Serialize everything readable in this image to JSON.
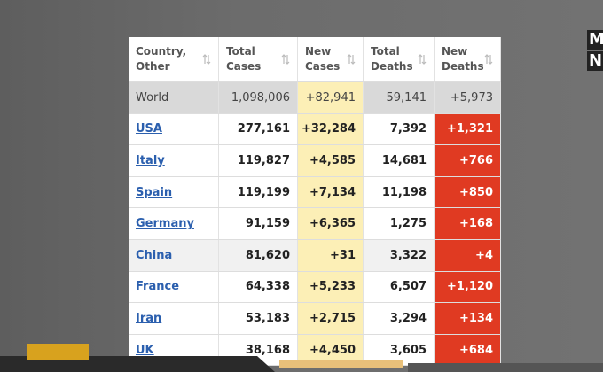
{
  "logo": [
    "M",
    "N"
  ],
  "table": {
    "headers": [
      "Country, Other",
      "Total Cases",
      "New Cases",
      "Total Deaths",
      "New Deaths"
    ],
    "rows": [
      [
        "World",
        "1,098,006",
        "+82,941",
        "59,141",
        "+5,973"
      ],
      [
        "USA",
        "277,161",
        "+32,284",
        "7,392",
        "+1,321"
      ],
      [
        "Italy",
        "119,827",
        "+4,585",
        "14,681",
        "+766"
      ],
      [
        "Spain",
        "119,199",
        "+7,134",
        "11,198",
        "+850"
      ],
      [
        "Germany",
        "91,159",
        "+6,365",
        "1,275",
        "+168"
      ],
      [
        "China",
        "81,620",
        "+31",
        "3,322",
        "+4"
      ],
      [
        "France",
        "64,338",
        "+5,233",
        "6,507",
        "+1,120"
      ],
      [
        "Iran",
        "53,183",
        "+2,715",
        "3,294",
        "+134"
      ],
      [
        "UK",
        "38,168",
        "+4,450",
        "3,605",
        "+684"
      ]
    ]
  }
}
